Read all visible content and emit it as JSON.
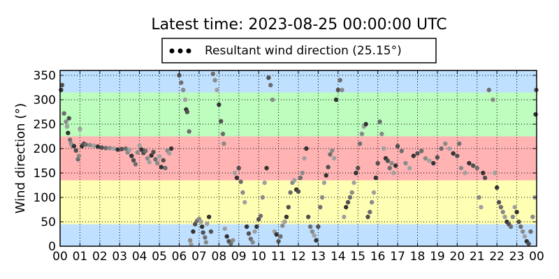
{
  "chart_data": {
    "type": "scatter",
    "title": "Latest time: 2023-08-25 00:00:00 UTC",
    "xlabel": "",
    "ylabel": "Wind direction (°)",
    "xlim": [
      0,
      24
    ],
    "ylim": [
      0,
      360
    ],
    "x_ticks": [
      "00",
      "01",
      "02",
      "03",
      "04",
      "05",
      "06",
      "07",
      "08",
      "09",
      "10",
      "11",
      "12",
      "13",
      "14",
      "15",
      "16",
      "17",
      "18",
      "19",
      "20",
      "21",
      "22",
      "23",
      "00"
    ],
    "y_ticks": [
      0,
      50,
      100,
      150,
      200,
      250,
      300,
      350
    ],
    "grid": true,
    "legend": {
      "position": "top-center",
      "label": "Resultant wind direction (25.15°)"
    },
    "bands": [
      {
        "from": 0,
        "to": 45,
        "color": "#bfe0ff"
      },
      {
        "from": 45,
        "to": 135,
        "color": "#ffffb3"
      },
      {
        "from": 135,
        "to": 225,
        "color": "#ffb3b3"
      },
      {
        "from": 225,
        "to": 315,
        "color": "#bdfdbd"
      },
      {
        "from": 315,
        "to": 360,
        "color": "#bfe0ff"
      }
    ],
    "marker_colors": [
      "#333333",
      "#505050",
      "#6e6e6e",
      "#8a8a8a",
      "#a0a0a0"
    ],
    "series": [
      {
        "values_note": "",
        "points": [
          [
            0.05,
            320
          ],
          [
            0.1,
            330
          ],
          [
            0.2,
            272
          ],
          [
            0.3,
            255
          ],
          [
            0.35,
            245
          ],
          [
            0.4,
            232
          ],
          [
            0.45,
            262
          ],
          [
            0.5,
            218
          ],
          [
            0.55,
            210
          ],
          [
            0.6,
            205
          ],
          [
            0.7,
            205
          ],
          [
            0.8,
            196
          ],
          [
            0.9,
            178
          ],
          [
            0.95,
            185
          ],
          [
            1.0,
            240
          ],
          [
            1.1,
            205
          ],
          [
            1.2,
            210
          ],
          [
            1.3,
            208
          ],
          [
            1.5,
            207
          ],
          [
            1.7,
            206
          ],
          [
            1.9,
            204
          ],
          [
            2.1,
            202
          ],
          [
            2.3,
            201
          ],
          [
            2.5,
            201
          ],
          [
            2.7,
            200
          ],
          [
            2.9,
            198
          ],
          [
            3.1,
            199
          ],
          [
            3.3,
            200
          ],
          [
            3.4,
            192
          ],
          [
            3.5,
            198
          ],
          [
            3.6,
            185
          ],
          [
            3.7,
            176
          ],
          [
            3.8,
            168
          ],
          [
            3.9,
            192
          ],
          [
            4.0,
            206
          ],
          [
            4.1,
            198
          ],
          [
            4.2,
            191
          ],
          [
            4.3,
            195
          ],
          [
            4.4,
            180
          ],
          [
            4.5,
            172
          ],
          [
            4.6,
            186
          ],
          [
            4.7,
            193
          ],
          [
            4.8,
            178
          ],
          [
            4.9,
            170
          ],
          [
            5.0,
            184
          ],
          [
            5.1,
            162
          ],
          [
            5.2,
            176
          ],
          [
            5.3,
            160
          ],
          [
            5.4,
            196
          ],
          [
            5.5,
            190
          ],
          [
            5.6,
            200
          ],
          [
            6.0,
            350
          ],
          [
            6.1,
            335
          ],
          [
            6.2,
            320
          ],
          [
            6.3,
            300
          ],
          [
            6.35,
            280
          ],
          [
            6.4,
            275
          ],
          [
            6.5,
            235
          ],
          [
            6.55,
            12
          ],
          [
            6.6,
            4
          ],
          [
            6.7,
            30
          ],
          [
            6.8,
            45
          ],
          [
            6.9,
            52
          ],
          [
            7.0,
            56
          ],
          [
            7.1,
            50
          ],
          [
            7.15,
            40
          ],
          [
            7.2,
            28
          ],
          [
            7.3,
            18
          ],
          [
            7.35,
            8
          ],
          [
            7.4,
            46
          ],
          [
            7.5,
            60
          ],
          [
            7.6,
            30
          ],
          [
            7.7,
            353
          ],
          [
            7.8,
            340
          ],
          [
            7.9,
            320
          ],
          [
            8.0,
            290
          ],
          [
            8.1,
            256
          ],
          [
            8.2,
            230
          ],
          [
            8.25,
            210
          ],
          [
            8.3,
            36
          ],
          [
            8.4,
            20
          ],
          [
            8.5,
            10
          ],
          [
            8.6,
            5
          ],
          [
            8.7,
            12
          ],
          [
            8.8,
            150
          ],
          [
            8.9,
            140
          ],
          [
            9.0,
            160
          ],
          [
            9.1,
            132
          ],
          [
            9.2,
            110
          ],
          [
            9.3,
            90
          ],
          [
            9.4,
            40
          ],
          [
            9.5,
            26
          ],
          [
            9.6,
            15
          ],
          [
            9.7,
            8
          ],
          [
            9.8,
            30
          ],
          [
            9.9,
            40
          ],
          [
            10.0,
            55
          ],
          [
            10.1,
            62
          ],
          [
            10.2,
            100
          ],
          [
            10.3,
            130
          ],
          [
            10.4,
            160
          ],
          [
            10.5,
            345
          ],
          [
            10.6,
            330
          ],
          [
            10.7,
            300
          ],
          [
            10.8,
            30
          ],
          [
            10.9,
            24
          ],
          [
            11.0,
            10
          ],
          [
            11.1,
            20
          ],
          [
            11.2,
            42
          ],
          [
            11.3,
            50
          ],
          [
            11.4,
            60
          ],
          [
            11.5,
            80
          ],
          [
            11.6,
            110
          ],
          [
            11.7,
            130
          ],
          [
            11.8,
            135
          ],
          [
            11.9,
            116
          ],
          [
            12.0,
            112
          ],
          [
            12.1,
            140
          ],
          [
            12.2,
            150
          ],
          [
            12.3,
            180
          ],
          [
            12.4,
            200
          ],
          [
            12.5,
            60
          ],
          [
            12.6,
            40
          ],
          [
            12.7,
            30
          ],
          [
            12.8,
            22
          ],
          [
            12.9,
            12
          ],
          [
            13.0,
            40
          ],
          [
            13.1,
            80
          ],
          [
            13.2,
            100
          ],
          [
            13.3,
            130
          ],
          [
            13.4,
            145
          ],
          [
            13.5,
            162
          ],
          [
            13.6,
            188
          ],
          [
            13.7,
            196
          ],
          [
            13.8,
            180
          ],
          [
            13.9,
            300
          ],
          [
            14.0,
            320
          ],
          [
            14.1,
            340
          ],
          [
            14.2,
            320
          ],
          [
            14.3,
            60
          ],
          [
            14.4,
            80
          ],
          [
            14.5,
            90
          ],
          [
            14.6,
            100
          ],
          [
            14.7,
            110
          ],
          [
            14.8,
            130
          ],
          [
            14.9,
            150
          ],
          [
            15.0,
            160
          ],
          [
            15.1,
            210
          ],
          [
            15.2,
            230
          ],
          [
            15.3,
            245
          ],
          [
            15.4,
            250
          ],
          [
            15.5,
            60
          ],
          [
            15.6,
            70
          ],
          [
            15.7,
            90
          ],
          [
            15.8,
            110
          ],
          [
            15.9,
            140
          ],
          [
            16.0,
            170
          ],
          [
            16.1,
            255
          ],
          [
            16.2,
            230
          ],
          [
            16.3,
            200
          ],
          [
            16.4,
            180
          ],
          [
            16.5,
            175
          ],
          [
            16.6,
            160
          ],
          [
            16.7,
            170
          ],
          [
            16.8,
            150
          ],
          [
            16.9,
            165
          ],
          [
            17.0,
            205
          ],
          [
            17.2,
            195
          ],
          [
            17.4,
            170
          ],
          [
            17.6,
            160
          ],
          [
            17.8,
            185
          ],
          [
            18.0,
            190
          ],
          [
            18.2,
            195
          ],
          [
            18.4,
            180
          ],
          [
            18.6,
            175
          ],
          [
            18.8,
            170
          ],
          [
            19.0,
            182
          ],
          [
            19.2,
            200
          ],
          [
            19.4,
            210
          ],
          [
            19.6,
            200
          ],
          [
            19.8,
            190
          ],
          [
            20.0,
            185
          ],
          [
            20.1,
            210
          ],
          [
            20.2,
            160
          ],
          [
            20.4,
            150
          ],
          [
            20.6,
            170
          ],
          [
            20.8,
            165
          ],
          [
            21.0,
            160
          ],
          [
            21.1,
            100
          ],
          [
            21.2,
            80
          ],
          [
            21.3,
            150
          ],
          [
            21.4,
            140
          ],
          [
            21.6,
            320
          ],
          [
            21.8,
            300
          ],
          [
            21.9,
            150
          ],
          [
            22.0,
            120
          ],
          [
            22.1,
            90
          ],
          [
            22.2,
            80
          ],
          [
            22.3,
            70
          ],
          [
            22.4,
            60
          ],
          [
            22.5,
            50
          ],
          [
            22.6,
            45
          ],
          [
            22.7,
            40
          ],
          [
            22.8,
            60
          ],
          [
            22.9,
            80
          ],
          [
            23.0,
            70
          ],
          [
            23.1,
            50
          ],
          [
            23.2,
            40
          ],
          [
            23.3,
            30
          ],
          [
            23.4,
            20
          ],
          [
            23.5,
            10
          ],
          [
            23.6,
            5
          ],
          [
            23.7,
            30
          ],
          [
            23.8,
            60
          ],
          [
            23.9,
            100
          ],
          [
            23.95,
            270
          ],
          [
            23.98,
            320
          ]
        ]
      }
    ]
  }
}
